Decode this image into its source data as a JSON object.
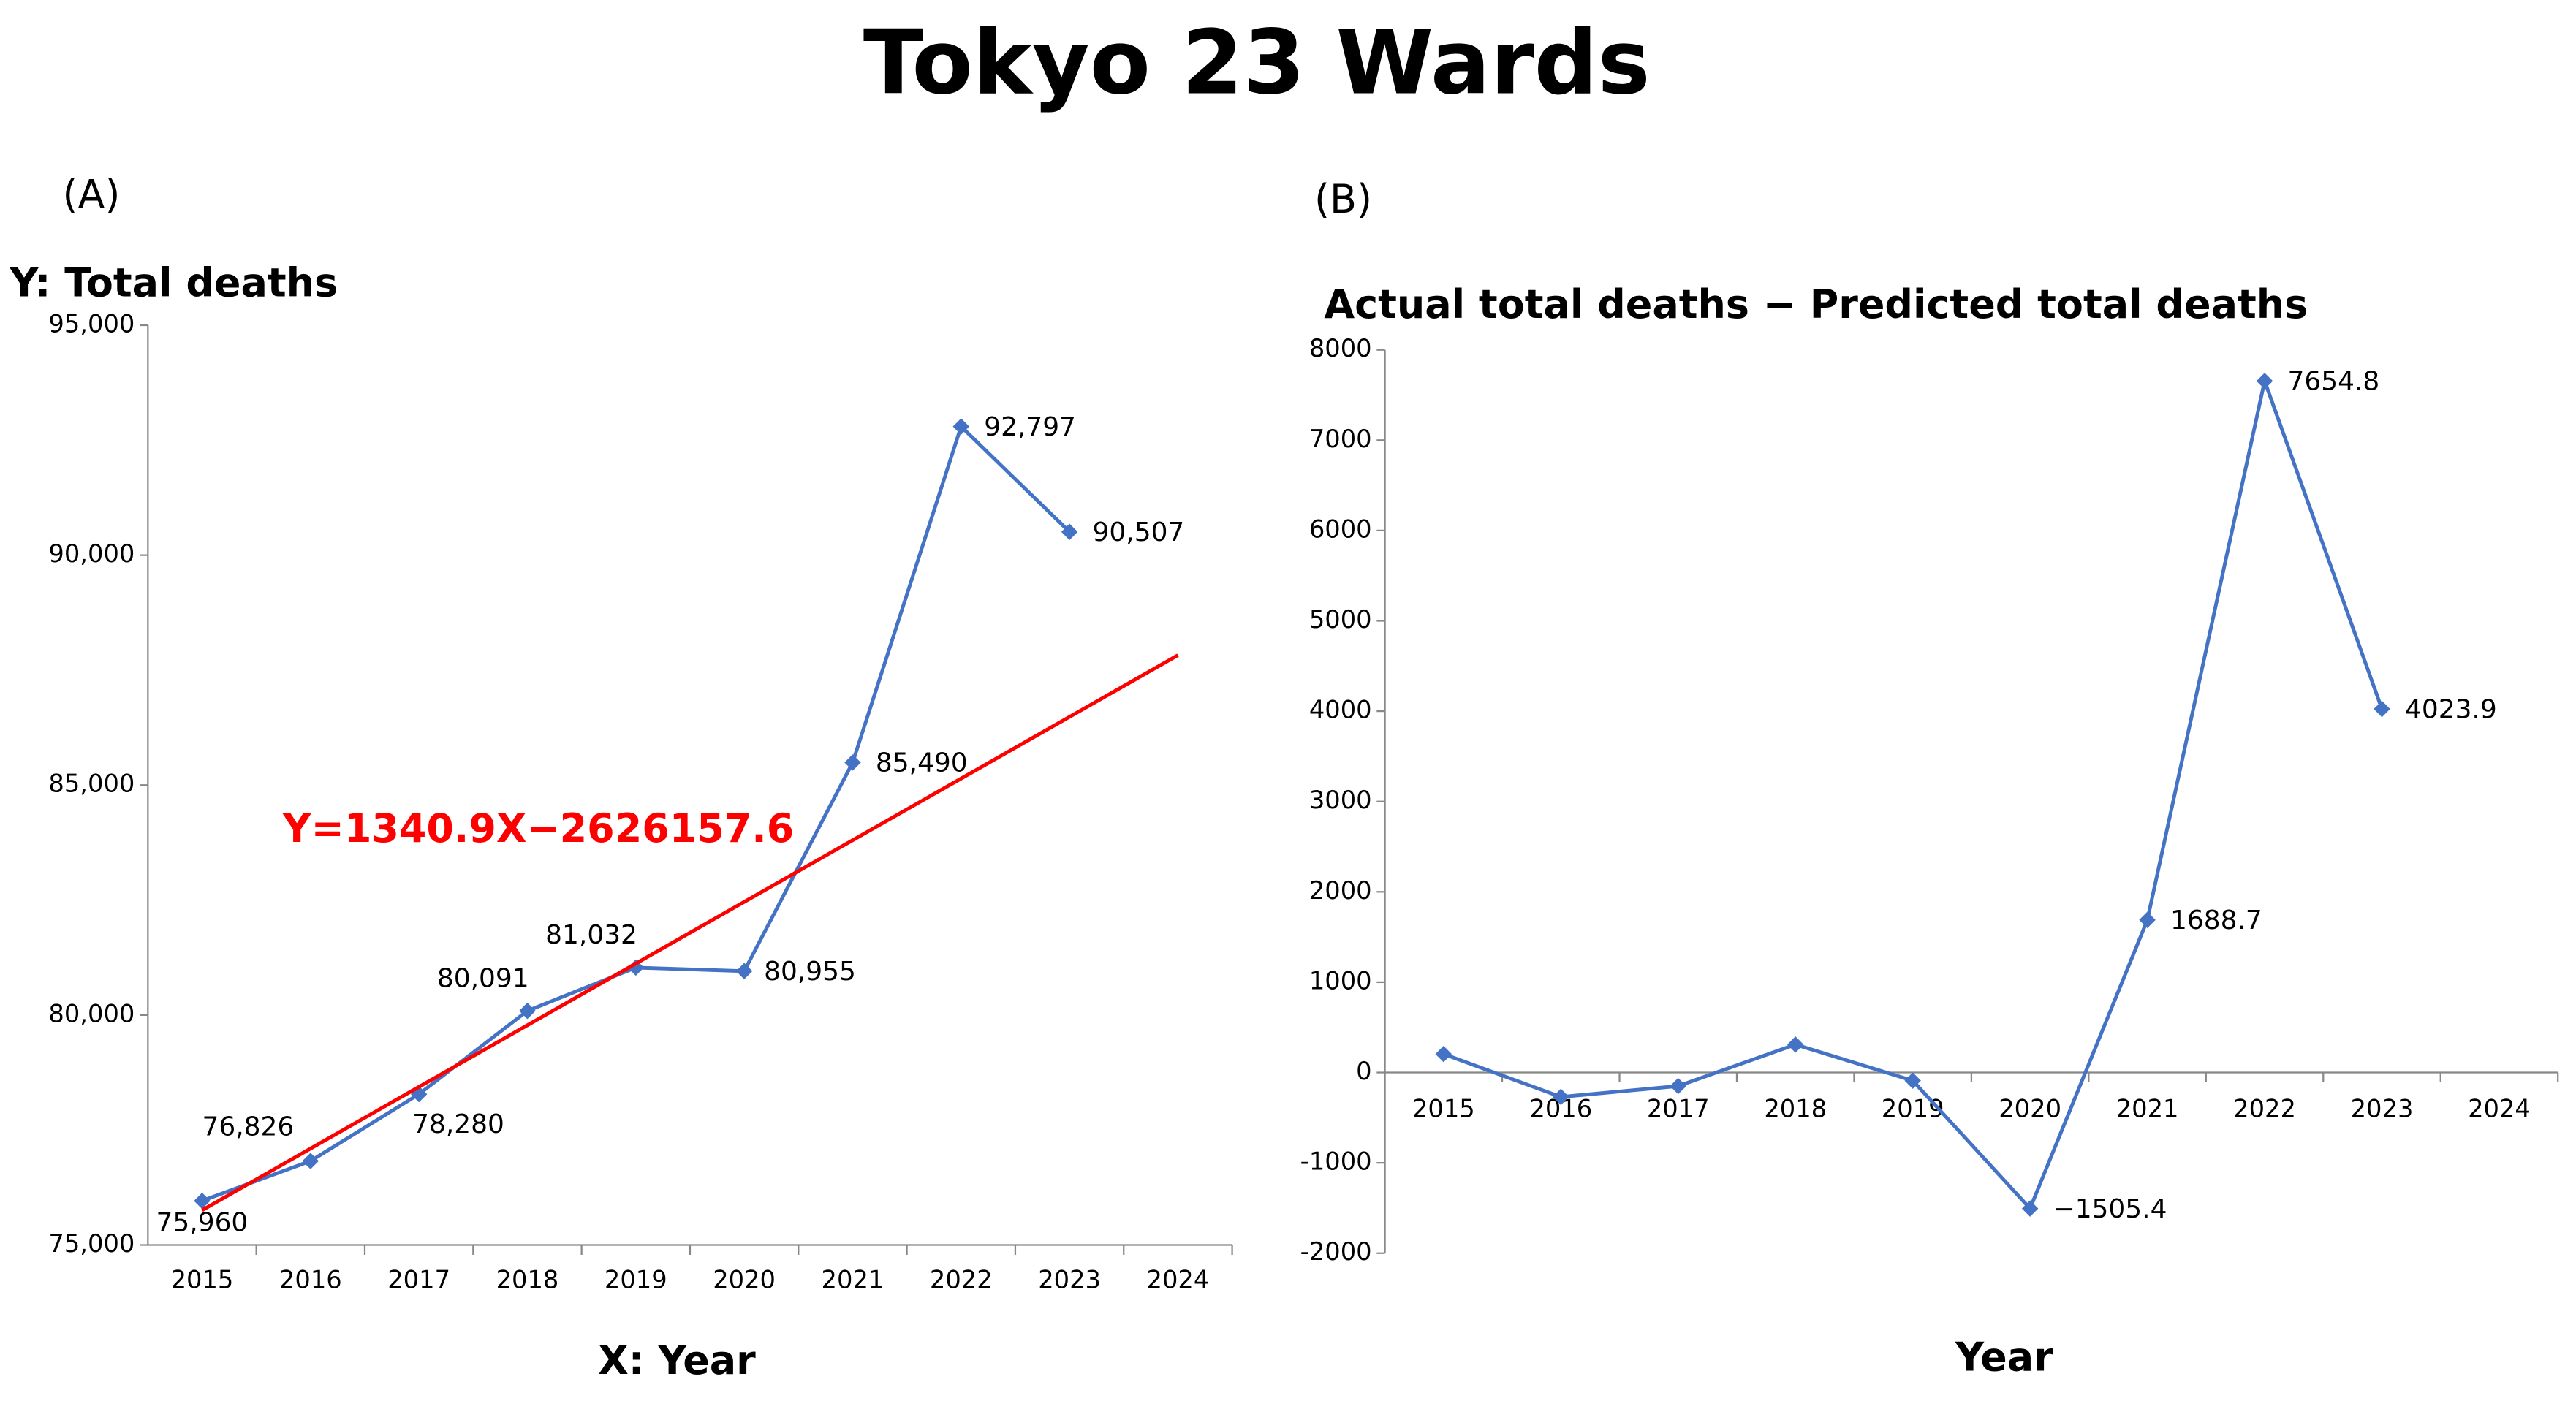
{
  "title": "Tokyo 23 Wards",
  "chart_data": [
    {
      "type": "line",
      "panel_label": "(A)",
      "y_label": "Y: Total deaths",
      "x_label": "X: Year",
      "categories": [
        "2015",
        "2016",
        "2017",
        "2018",
        "2019",
        "2020",
        "2021",
        "2022",
        "2023",
        "2024"
      ],
      "series": [
        {
          "color": "#4472c4",
          "values": [
            75960,
            76826,
            78280,
            80091,
            81032,
            80955,
            85490,
            92797,
            90507,
            null
          ],
          "value_labels": [
            "75,960",
            "76,826",
            "78,280",
            "80,091",
            "81,032",
            "80,955",
            "85,490",
            "92,797",
            "90,507",
            null
          ]
        }
      ],
      "trendline": {
        "label": "Y=1340.9X−2626157.6",
        "color": "#ff0000",
        "values": [
          75755.9,
          77096.8,
          78437.7,
          79778.6,
          81119.5,
          82460.4,
          83801.3,
          85142.2,
          86483.1,
          87824
        ]
      },
      "ylim": [
        75000,
        95000
      ],
      "yticks": [
        {
          "value": 75000,
          "label": "75,000"
        },
        {
          "value": 80000,
          "label": "80,000"
        },
        {
          "value": 85000,
          "label": "85,000"
        },
        {
          "value": 90000,
          "label": "90,000"
        },
        {
          "value": 95000,
          "label": "95,000"
        }
      ]
    },
    {
      "type": "line",
      "panel_label": "(B)",
      "title": "Actual total deaths − Predicted total deaths",
      "x_label": "Year",
      "categories": [
        "2015",
        "2016",
        "2017",
        "2018",
        "2019",
        "2020",
        "2021",
        "2022",
        "2023",
        "2024"
      ],
      "series": [
        {
          "color": "#4472c4",
          "values": [
            205,
            -270,
            -150,
            310,
            -90,
            -1505.4,
            1688.7,
            7654.8,
            4023.9,
            null
          ],
          "value_labels": [
            null,
            null,
            null,
            null,
            null,
            "−1505.4",
            "1688.7",
            "7654.8",
            "4023.9",
            null
          ]
        }
      ],
      "ylim": [
        -2000,
        8000
      ],
      "yticks": [
        -2000,
        -1000,
        0,
        1000,
        2000,
        3000,
        4000,
        5000,
        6000,
        7000,
        8000
      ]
    }
  ]
}
